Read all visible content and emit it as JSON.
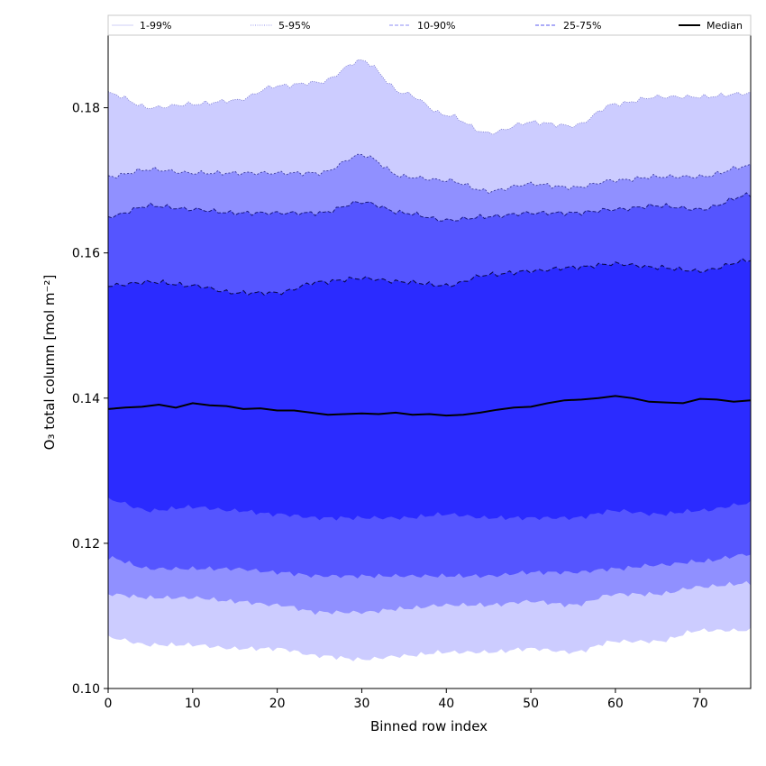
{
  "chart_data": {
    "type": "area",
    "xlabel": "Binned row index",
    "ylabel": "O₃ total column [mol m⁻²]",
    "xlim": [
      0,
      76
    ],
    "ylim": [
      0.1,
      0.19
    ],
    "x_ticks": [
      0,
      10,
      20,
      30,
      40,
      50,
      60,
      70
    ],
    "x_tick_labels": [
      "0",
      "10",
      "20",
      "30",
      "40",
      "50",
      "60",
      "70"
    ],
    "y_ticks": [
      0.1,
      0.12,
      0.14,
      0.16,
      0.18
    ],
    "y_tick_labels": [
      "0.10",
      "0.12",
      "0.14",
      "0.16",
      "0.18"
    ],
    "legend_position": "top, across plot width",
    "legend": [
      {
        "label": "1-99%",
        "color": "#cfcff7",
        "style": "solid"
      },
      {
        "label": "5-95%",
        "color": "#9999ee",
        "style": "dotted"
      },
      {
        "label": "10-90%",
        "color": "#8c8cf5",
        "style": "dashed"
      },
      {
        "label": "25-75%",
        "color": "#5a5af0",
        "style": "dashed"
      },
      {
        "label": "Median",
        "color": "#000000",
        "style": "solid"
      }
    ],
    "x_knots": [
      0,
      5,
      10,
      15,
      20,
      25,
      30,
      35,
      40,
      45,
      50,
      55,
      60,
      65,
      70,
      76
    ],
    "bands": [
      {
        "name": "1-99%",
        "fill": "#ccccff",
        "upper": [
          0.182,
          0.18,
          0.1805,
          0.181,
          0.183,
          0.1835,
          0.1865,
          0.182,
          0.179,
          0.1765,
          0.178,
          0.1775,
          0.1805,
          0.1815,
          0.1815,
          0.182
        ],
        "lower": [
          0.107,
          0.106,
          0.106,
          0.1055,
          0.1055,
          0.1045,
          0.104,
          0.1045,
          0.105,
          0.105,
          0.1055,
          0.105,
          0.1065,
          0.1065,
          0.108,
          0.108
        ]
      },
      {
        "name": "5-95%",
        "fill": "#9090ff",
        "upper": [
          0.1705,
          0.1715,
          0.171,
          0.171,
          0.171,
          0.171,
          0.1735,
          0.1705,
          0.17,
          0.1685,
          0.1695,
          0.169,
          0.17,
          0.1705,
          0.1705,
          0.172
        ],
        "lower": [
          0.113,
          0.1125,
          0.1125,
          0.112,
          0.1115,
          0.1105,
          0.1105,
          0.111,
          0.1115,
          0.1115,
          0.112,
          0.1115,
          0.113,
          0.113,
          0.114,
          0.1145
        ]
      },
      {
        "name": "10-90%",
        "fill": "#5555ff",
        "upper": [
          0.165,
          0.1665,
          0.166,
          0.1655,
          0.1655,
          0.1655,
          0.167,
          0.1655,
          0.1645,
          0.165,
          0.1655,
          0.1655,
          0.166,
          0.1665,
          0.166,
          0.168
        ],
        "lower": [
          0.118,
          0.1165,
          0.1165,
          0.1165,
          0.116,
          0.1155,
          0.1155,
          0.1155,
          0.1155,
          0.1155,
          0.116,
          0.116,
          0.1165,
          0.117,
          0.1175,
          0.1185
        ]
      },
      {
        "name": "25-75%",
        "fill": "#2b2bff",
        "upper": [
          0.1555,
          0.156,
          0.1555,
          0.1545,
          0.1545,
          0.156,
          0.1565,
          0.156,
          0.1555,
          0.157,
          0.1575,
          0.158,
          0.1585,
          0.158,
          0.1575,
          0.159
        ],
        "lower": [
          0.126,
          0.1245,
          0.125,
          0.1245,
          0.124,
          0.1235,
          0.1235,
          0.1235,
          0.124,
          0.1235,
          0.1235,
          0.1235,
          0.1245,
          0.124,
          0.1245,
          0.1255
        ]
      }
    ],
    "median": {
      "x": [
        0,
        2,
        4,
        6,
        8,
        10,
        12,
        14,
        16,
        18,
        20,
        22,
        24,
        26,
        28,
        30,
        32,
        34,
        36,
        38,
        40,
        42,
        44,
        46,
        48,
        50,
        52,
        54,
        56,
        58,
        60,
        62,
        64,
        66,
        68,
        70,
        72,
        74,
        76
      ],
      "y": [
        0.1385,
        0.1387,
        0.1388,
        0.1391,
        0.1387,
        0.1393,
        0.139,
        0.1389,
        0.1385,
        0.1386,
        0.1383,
        0.1383,
        0.138,
        0.1377,
        0.1378,
        0.1379,
        0.1378,
        0.138,
        0.1377,
        0.1378,
        0.1376,
        0.1377,
        0.138,
        0.1384,
        0.1387,
        0.1388,
        0.1393,
        0.1397,
        0.1398,
        0.14,
        0.1403,
        0.14,
        0.1395,
        0.1394,
        0.1393,
        0.1399,
        0.1398,
        0.1395,
        0.1397
      ]
    }
  }
}
